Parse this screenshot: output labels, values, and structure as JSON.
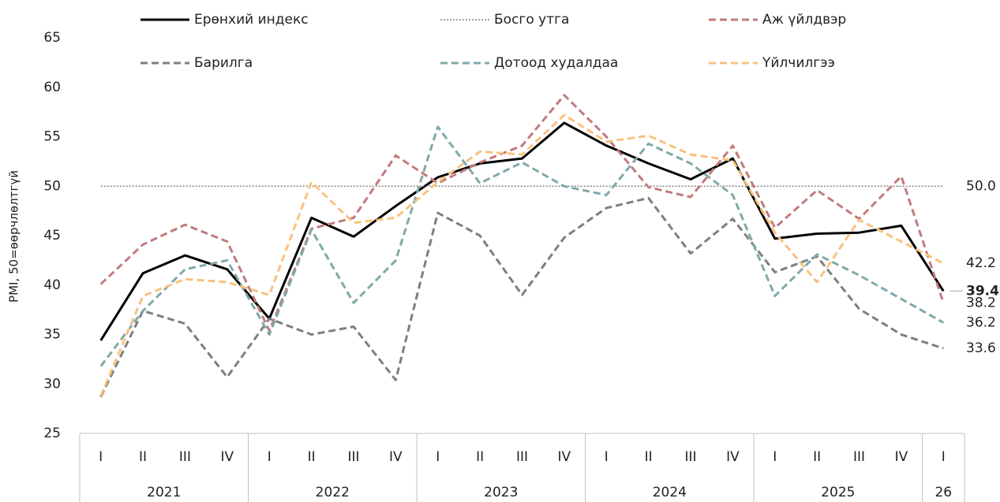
{
  "chart_data": {
    "type": "line",
    "y_label": "PMI, 50=өөрчлөлтгүй",
    "categories": [
      "I",
      "II",
      "III",
      "IV",
      "I",
      "II",
      "III",
      "IV",
      "I",
      "II",
      "III",
      "IV",
      "I",
      "II",
      "III",
      "IV",
      "I",
      "II",
      "III",
      "IV",
      "I"
    ],
    "years": [
      "2021",
      "2021",
      "2021",
      "2021",
      "2022",
      "2022",
      "2022",
      "2022",
      "2023",
      "2023",
      "2023",
      "2023",
      "2024",
      "2024",
      "2024",
      "2024",
      "2025",
      "2025",
      "2025",
      "2025",
      "26"
    ],
    "ylim": [
      25,
      65
    ],
    "yticks": [
      25,
      30,
      35,
      40,
      45,
      50,
      55,
      60,
      65
    ],
    "grid": false,
    "series": [
      {
        "name": "Ерөнхий индекс",
        "color": "#000000",
        "dash": "solid",
        "label_color": "#000000",
        "label_bold": true,
        "values": [
          34.4,
          41.2,
          43.0,
          41.6,
          36.6,
          46.8,
          44.9,
          48.0,
          50.9,
          52.3,
          52.8,
          56.4,
          54.1,
          52.3,
          50.7,
          52.8,
          44.7,
          45.2,
          45.3,
          46.0,
          39.4
        ],
        "value_labels": [
          null,
          null,
          null,
          null,
          null,
          null,
          null,
          null,
          null,
          null,
          null,
          null,
          null,
          null,
          null,
          null,
          null,
          null,
          null,
          null,
          "39.4"
        ]
      },
      {
        "name": "Босго утга",
        "color": "#808080",
        "dash": "dotted",
        "label_color": "#a6a6a6",
        "values": [
          50,
          50,
          50,
          50,
          50,
          50,
          50,
          50,
          50,
          50,
          50,
          50,
          50,
          50,
          50,
          50,
          50,
          50,
          50,
          50,
          50
        ],
        "value_labels": [
          null,
          null,
          null,
          null,
          null,
          null,
          null,
          null,
          null,
          null,
          null,
          null,
          null,
          null,
          null,
          null,
          null,
          null,
          null,
          null,
          "50.0"
        ]
      },
      {
        "name": "Аж үйлдвэр",
        "color": "#c27b7c",
        "dash": "dashed",
        "label_color": "#8b1c1c",
        "values": [
          40.1,
          44.1,
          46.1,
          44.4,
          35.4,
          45.7,
          46.8,
          53.1,
          50.3,
          52.4,
          54.1,
          59.2,
          55.0,
          49.9,
          48.9,
          54.1,
          45.8,
          49.6,
          46.7,
          51.0,
          38.2
        ],
        "value_labels": [
          null,
          null,
          null,
          null,
          null,
          null,
          null,
          null,
          null,
          null,
          null,
          null,
          null,
          null,
          null,
          null,
          null,
          null,
          null,
          null,
          "38.2"
        ]
      },
      {
        "name": "Барилга",
        "color": "#7f7f7f",
        "dash": "dashed",
        "label_color": "#7f7f7f",
        "values": [
          28.7,
          37.4,
          36.1,
          30.7,
          36.6,
          35.0,
          35.8,
          30.4,
          47.3,
          45.0,
          39.0,
          44.8,
          47.8,
          48.8,
          43.2,
          46.7,
          41.3,
          42.9,
          37.6,
          35.0,
          33.6
        ],
        "value_labels": [
          null,
          null,
          null,
          null,
          null,
          null,
          null,
          null,
          null,
          null,
          null,
          null,
          null,
          null,
          null,
          null,
          null,
          null,
          null,
          null,
          "33.6"
        ]
      },
      {
        "name": "Дотоод худалдаа",
        "color": "#80a9a9",
        "dash": "dashed",
        "label_color": "#4a7f8a",
        "values": [
          31.8,
          37.4,
          41.6,
          42.5,
          35.0,
          45.6,
          38.2,
          42.5,
          56.0,
          50.3,
          52.4,
          50.0,
          49.1,
          54.3,
          52.3,
          49.1,
          38.9,
          43.1,
          41.0,
          38.6,
          36.2
        ],
        "value_labels": [
          null,
          null,
          null,
          null,
          null,
          null,
          null,
          null,
          null,
          null,
          null,
          null,
          null,
          null,
          null,
          null,
          null,
          null,
          null,
          null,
          "36.2"
        ]
      },
      {
        "name": "Үйлчилгээ",
        "color": "#f8c27e",
        "dash": "dashed",
        "label_color": "#e8901c",
        "values": [
          28.8,
          38.9,
          40.6,
          40.3,
          39.0,
          50.4,
          46.3,
          46.8,
          50.4,
          53.5,
          53.2,
          57.2,
          54.5,
          55.1,
          53.2,
          52.6,
          45.3,
          40.3,
          46.6,
          44.4,
          42.2
        ],
        "value_labels": [
          null,
          null,
          null,
          null,
          null,
          null,
          null,
          null,
          null,
          null,
          null,
          null,
          null,
          null,
          null,
          null,
          null,
          null,
          null,
          null,
          "42.2"
        ]
      }
    ]
  }
}
